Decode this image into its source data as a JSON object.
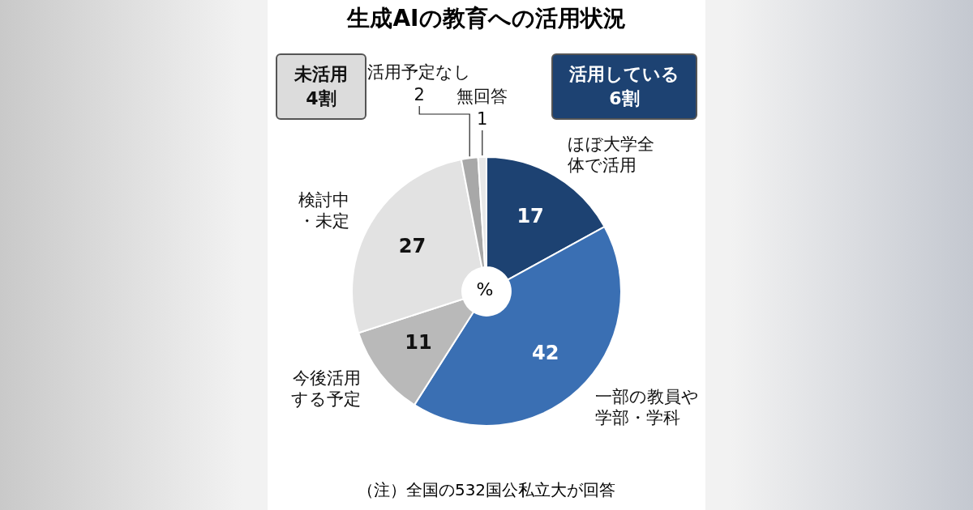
{
  "chart_data": {
    "type": "donut",
    "title": "生成AIの教育への活用状況",
    "categories": [
      "ほぼ大学全体で活用",
      "一部の教員や学部・学科",
      "今後活用する予定",
      "検討中・未定",
      "活用予定なし",
      "無回答"
    ],
    "values": [
      17,
      42,
      11,
      27,
      2,
      1
    ],
    "colors": [
      "#1d4272",
      "#3a6fb3",
      "#b9b9b9",
      "#e2e2e2",
      "#a8a8a8",
      "#e8e8e8"
    ],
    "data_labels": true,
    "legend": false,
    "annotations": [
      "未活用\n4割",
      "活用している\n6割",
      "%",
      "（注）全国の532国公私立大が回答"
    ]
  }
}
